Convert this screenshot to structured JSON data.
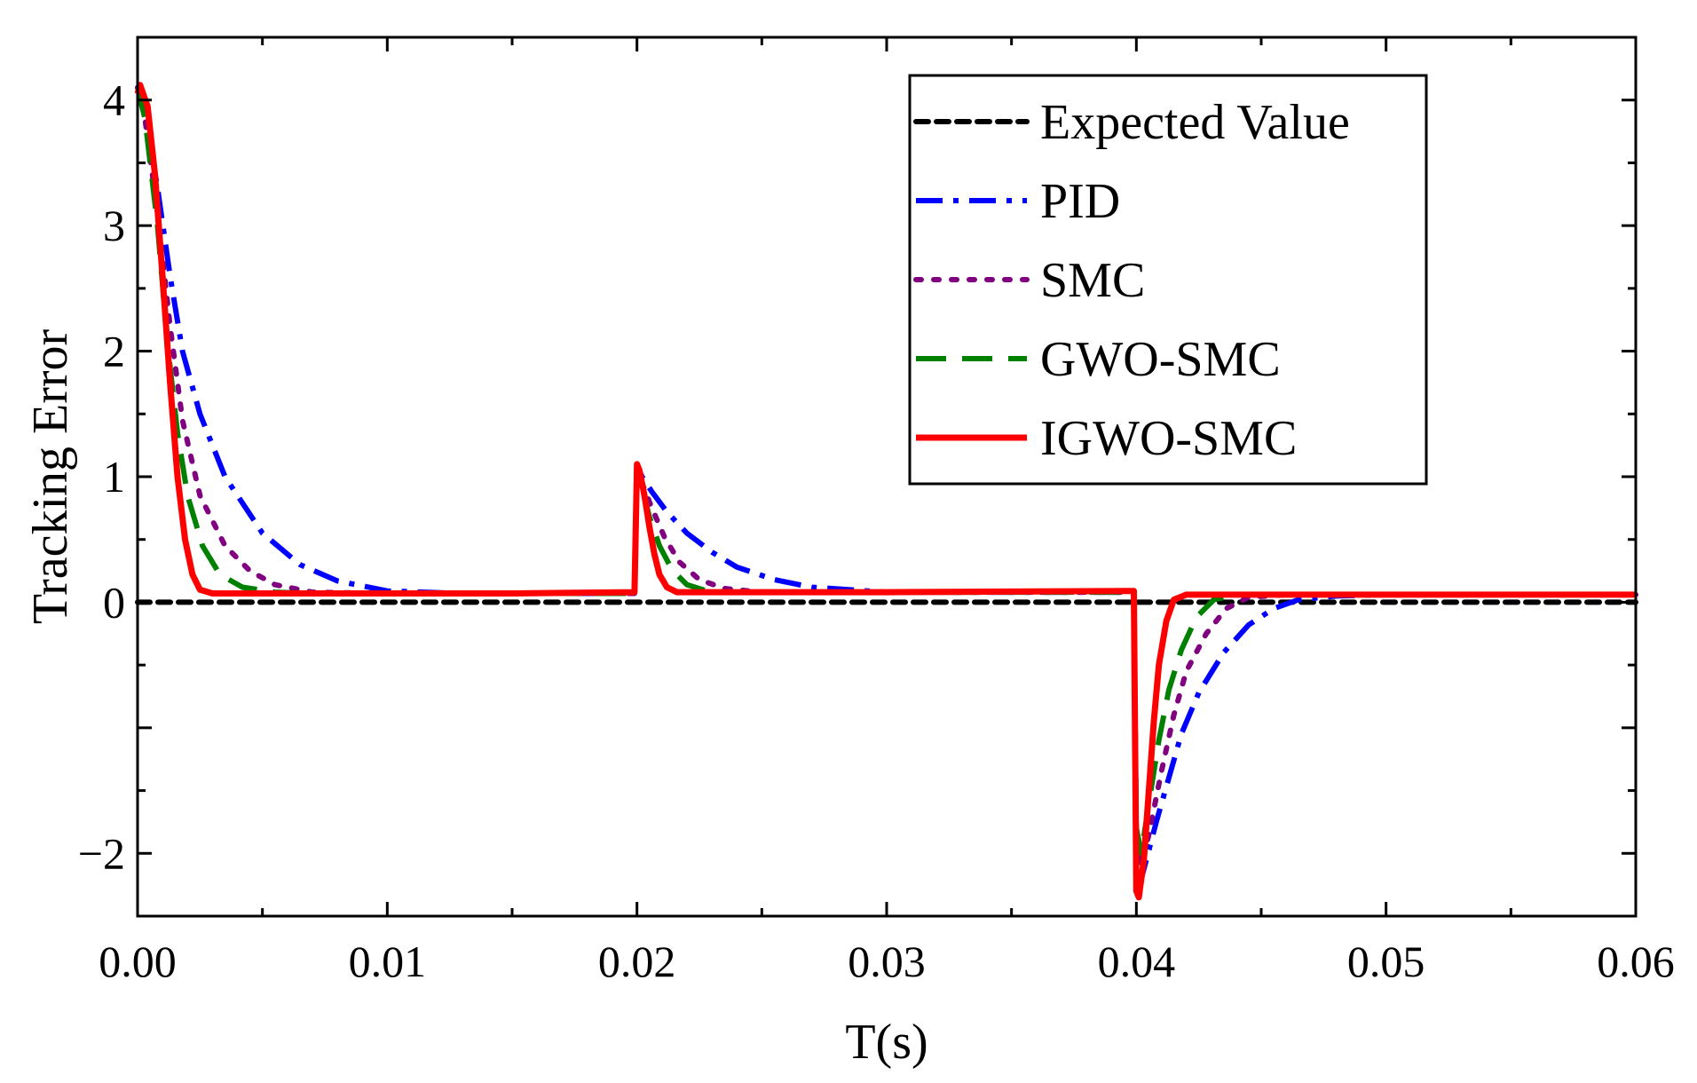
{
  "chart_data": {
    "type": "line",
    "title": "",
    "xlabel": "T(s)",
    "ylabel": "Tracking Error",
    "xlim": [
      0,
      0.06
    ],
    "ylim": [
      -2.5,
      4.5
    ],
    "x_ticks": [
      0,
      0.01,
      0.02,
      0.03,
      0.04,
      0.05,
      0.06
    ],
    "x_tick_labels": [
      "0.00",
      "0.01",
      "0.02",
      "0.03",
      "0.04",
      "0.05",
      "0.06"
    ],
    "y_ticks": [
      -2,
      0,
      1,
      2,
      3,
      4
    ],
    "y_tick_labels": [
      "−2",
      "0",
      "1",
      "2",
      "3",
      "4"
    ],
    "legend_position": "top-right",
    "grid": false,
    "series": [
      {
        "name": "Expected Value",
        "color": "#000000",
        "style": "dotted",
        "x": [
          0,
          0.06
        ],
        "y": [
          0,
          0
        ]
      },
      {
        "name": "PID",
        "color": "#0000ff",
        "style": "dashdot",
        "x": [
          0,
          0.0003,
          0.0008,
          0.0013,
          0.0018,
          0.0025,
          0.0035,
          0.005,
          0.0065,
          0.008,
          0.01,
          0.013,
          0.016,
          0.0199,
          0.02,
          0.0202,
          0.0206,
          0.0212,
          0.022,
          0.023,
          0.024,
          0.0255,
          0.027,
          0.03,
          0.035,
          0.0399,
          0.04,
          0.0402,
          0.0404,
          0.0408,
          0.0413,
          0.0418,
          0.0425,
          0.0435,
          0.0445,
          0.0455,
          0.0465,
          0.048,
          0.05,
          0.055,
          0.06
        ],
        "y": [
          4.1,
          3.9,
          3.3,
          2.6,
          2.0,
          1.5,
          1.0,
          0.55,
          0.3,
          0.17,
          0.09,
          0.07,
          0.07,
          0.07,
          1.1,
          1.0,
          0.88,
          0.72,
          0.55,
          0.4,
          0.28,
          0.18,
          0.12,
          0.08,
          0.08,
          0.08,
          -2.0,
          -2.2,
          -2.05,
          -1.75,
          -1.4,
          -1.05,
          -0.72,
          -0.4,
          -0.18,
          -0.05,
          0.02,
          0.05,
          0.06,
          0.06,
          0.06
        ]
      },
      {
        "name": "SMC",
        "color": "#800080",
        "style": "dotted",
        "x": [
          0,
          0.0003,
          0.0008,
          0.0013,
          0.0018,
          0.0025,
          0.0035,
          0.0045,
          0.0055,
          0.007,
          0.01,
          0.015,
          0.0199,
          0.02,
          0.0202,
          0.0206,
          0.0211,
          0.0217,
          0.0225,
          0.0235,
          0.025,
          0.03,
          0.0399,
          0.04,
          0.0402,
          0.0405,
          0.041,
          0.0415,
          0.042,
          0.0428,
          0.0436,
          0.0445,
          0.046,
          0.05,
          0.06
        ],
        "y": [
          4.1,
          3.85,
          3.1,
          2.2,
          1.45,
          0.85,
          0.45,
          0.25,
          0.14,
          0.08,
          0.07,
          0.07,
          0.07,
          1.05,
          0.95,
          0.75,
          0.52,
          0.32,
          0.18,
          0.11,
          0.08,
          0.08,
          0.08,
          -1.9,
          -2.1,
          -1.85,
          -1.35,
          -0.9,
          -0.55,
          -0.25,
          -0.05,
          0.04,
          0.06,
          0.06,
          0.06
        ]
      },
      {
        "name": "GWO-SMC",
        "color": "#008000",
        "style": "dashed",
        "x": [
          0,
          0.0003,
          0.0008,
          0.0012,
          0.0016,
          0.002,
          0.0026,
          0.0033,
          0.0042,
          0.0055,
          0.007,
          0.01,
          0.015,
          0.0199,
          0.02,
          0.0202,
          0.0205,
          0.0209,
          0.0214,
          0.022,
          0.0228,
          0.0238,
          0.025,
          0.03,
          0.0399,
          0.04,
          0.0402,
          0.0405,
          0.0409,
          0.0413,
          0.0418,
          0.0424,
          0.0431,
          0.044,
          0.046,
          0.05,
          0.06
        ],
        "y": [
          4.1,
          3.85,
          3.0,
          2.05,
          1.35,
          0.85,
          0.45,
          0.22,
          0.12,
          0.08,
          0.07,
          0.07,
          0.07,
          0.07,
          1.05,
          0.92,
          0.68,
          0.45,
          0.26,
          0.14,
          0.09,
          0.08,
          0.08,
          0.08,
          0.08,
          -1.8,
          -2.0,
          -1.6,
          -1.1,
          -0.7,
          -0.38,
          -0.12,
          0.02,
          0.06,
          0.06,
          0.06,
          0.06
        ]
      },
      {
        "name": "IGWO-SMC",
        "color": "#ff0000",
        "style": "solid",
        "x": [
          0,
          0.0001,
          0.0004,
          0.0007,
          0.001,
          0.0013,
          0.0016,
          0.0019,
          0.0022,
          0.0025,
          0.003,
          0.005,
          0.01,
          0.015,
          0.0199,
          0.02,
          0.0201,
          0.0203,
          0.0205,
          0.0207,
          0.0209,
          0.0212,
          0.0216,
          0.022,
          0.025,
          0.03,
          0.0399,
          0.04,
          0.0401,
          0.0403,
          0.0405,
          0.0407,
          0.0409,
          0.0412,
          0.0415,
          0.042,
          0.043,
          0.045,
          0.05,
          0.055,
          0.06
        ],
        "y": [
          4.05,
          4.12,
          3.95,
          3.4,
          2.6,
          1.75,
          1.0,
          0.5,
          0.22,
          0.1,
          0.07,
          0.07,
          0.07,
          0.07,
          0.08,
          1.1,
          1.05,
          0.85,
          0.6,
          0.38,
          0.22,
          0.12,
          0.08,
          0.08,
          0.08,
          0.08,
          0.09,
          -2.3,
          -2.35,
          -2.05,
          -1.5,
          -0.95,
          -0.5,
          -0.15,
          0.02,
          0.06,
          0.06,
          0.06,
          0.06,
          0.06,
          0.06
        ]
      }
    ]
  }
}
